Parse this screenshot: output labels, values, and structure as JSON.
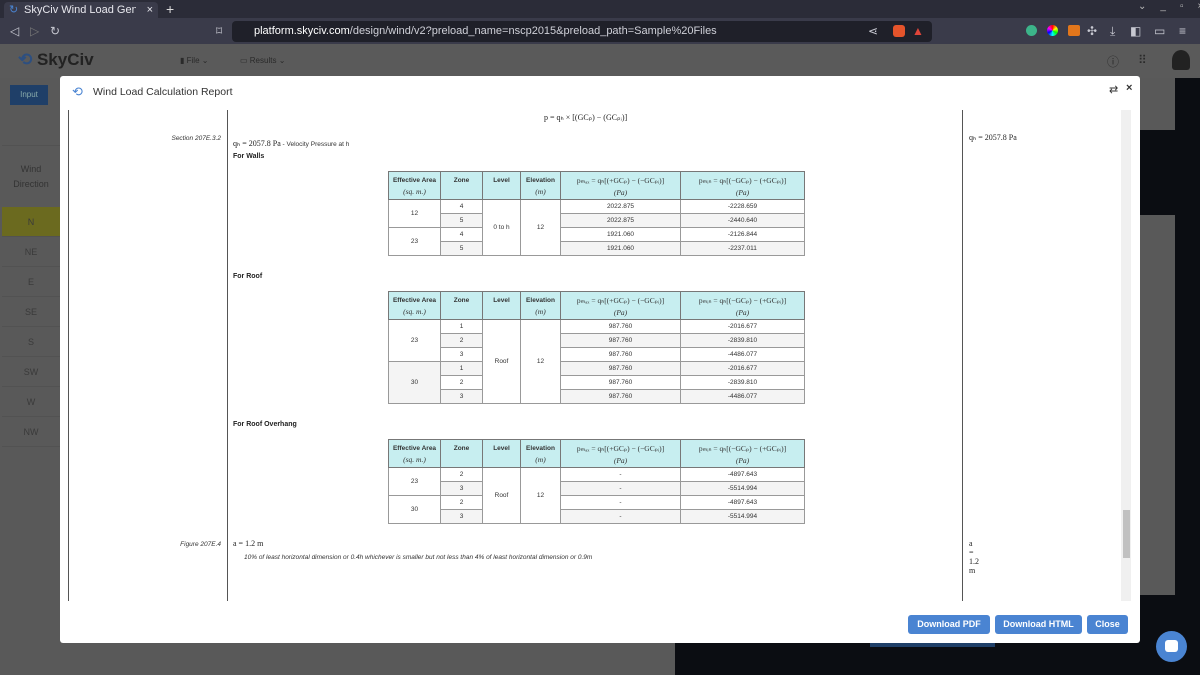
{
  "browser": {
    "tab_title": "SkyCiv Wind Load Generat",
    "url_host": "platform.skyciv.com",
    "url_path": "/design/wind/v2?preload_name=nscp2015&preload_path=Sample%20Files"
  },
  "app": {
    "logo": "SkyCiv",
    "menu": [
      "File",
      "Results"
    ],
    "input_tab": "Input",
    "wind_direction_header": "Wind Direction",
    "directions": [
      "N",
      "NE",
      "E",
      "SE",
      "S",
      "SW",
      "W",
      "NW"
    ],
    "selected_direction_color": "#6b6a1f"
  },
  "modal": {
    "title": "Wind Load Calculation Report",
    "buttons": {
      "pdf": "Download PDF",
      "html": "Download HTML",
      "close": "Close"
    },
    "accent": "#4a84d2"
  },
  "report": {
    "formula": "p = qₕ × [(GCₚ) − (GCₚᵢ)]",
    "section_ref": "Section 207E.3.2",
    "qh_expr": "qₕ = 2057.8 Pa",
    "qh_desc": " - Velocity Pressure at h",
    "qh_result": "qₕ = 2057.8 Pa",
    "headers": [
      "Effective Area",
      "(sq. m.)",
      "Zone",
      "Level",
      "Elevation",
      "(m)",
      "pₘₐₓ = qₕ[(+GCₚ) − (−GCₚᵢ)]",
      "(Pa)",
      "pₘᵢₙ = qₕ[(−GCₚ) − (+GCₚᵢ)]",
      "(Pa)"
    ],
    "tables": [
      {
        "title": "For Walls",
        "level": "0 to h",
        "elevation": "12",
        "groups": [
          {
            "area": "12",
            "rows": [
              [
                "4",
                "2022.875",
                "-2228.659"
              ],
              [
                "5",
                "2022.875",
                "-2440.640"
              ]
            ]
          },
          {
            "area": "23",
            "rows": [
              [
                "4",
                "1921.060",
                "-2126.844"
              ],
              [
                "5",
                "1921.060",
                "-2237.011"
              ]
            ]
          }
        ]
      },
      {
        "title": "For Roof",
        "level": "Roof",
        "elevation": "12",
        "groups": [
          {
            "area": "23",
            "rows": [
              [
                "1",
                "987.760",
                "-2016.677"
              ],
              [
                "2",
                "987.760",
                "-2839.810"
              ],
              [
                "3",
                "987.760",
                "-4486.077"
              ]
            ]
          },
          {
            "area": "30",
            "rows": [
              [
                "1",
                "987.760",
                "-2016.677"
              ],
              [
                "2",
                "987.760",
                "-2839.810"
              ],
              [
                "3",
                "987.760",
                "-4486.077"
              ]
            ]
          }
        ]
      },
      {
        "title": "For Roof Overhang",
        "level": "Roof",
        "elevation": "12",
        "groups": [
          {
            "area": "23",
            "rows": [
              [
                "2",
                "-",
                "-4897.643"
              ],
              [
                "3",
                "-",
                "-5514.994"
              ]
            ]
          },
          {
            "area": "30",
            "rows": [
              [
                "2",
                "-",
                "-4897.643"
              ],
              [
                "3",
                "-",
                "-5514.994"
              ]
            ]
          }
        ]
      }
    ],
    "figure_ref": "Figure 207E.4",
    "a_expr": "a = 1.2 m",
    "a_note": "10% of least horizontal dimension or 0.4h whichever is smaller but not less than 4% of least horizontal dimension or 0.9m",
    "a_result": "a = 1.2 m"
  }
}
